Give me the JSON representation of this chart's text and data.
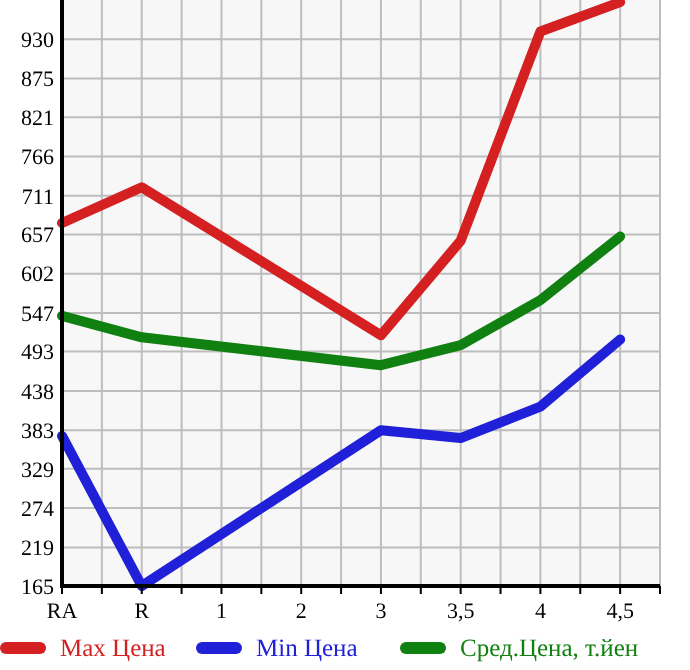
{
  "chart_data": {
    "type": "line",
    "categories": [
      "RA",
      "R",
      "1",
      "2",
      "3",
      "3,5",
      "4",
      "4,5"
    ],
    "series": [
      {
        "name": "Max Цена",
        "color": "#d42020",
        "values": [
          673,
          723,
          null,
          null,
          516,
          648,
          941,
          982
        ]
      },
      {
        "name": "Min Цена",
        "color": "#2020d8",
        "values": [
          375,
          165,
          null,
          null,
          383,
          372,
          416,
          510
        ]
      },
      {
        "name": "Сред.Цена, т.йен",
        "color": "#108010",
        "values": [
          543,
          513,
          null,
          null,
          474,
          502,
          565,
          654
        ]
      }
    ],
    "ylim": [
      165,
      985
    ],
    "yticks": [
      165,
      219,
      274,
      329,
      383,
      438,
      493,
      547,
      602,
      657,
      711,
      766,
      821,
      875,
      930
    ],
    "grid": true,
    "legend": "bottom",
    "marker": "none",
    "line_style": "solid"
  }
}
